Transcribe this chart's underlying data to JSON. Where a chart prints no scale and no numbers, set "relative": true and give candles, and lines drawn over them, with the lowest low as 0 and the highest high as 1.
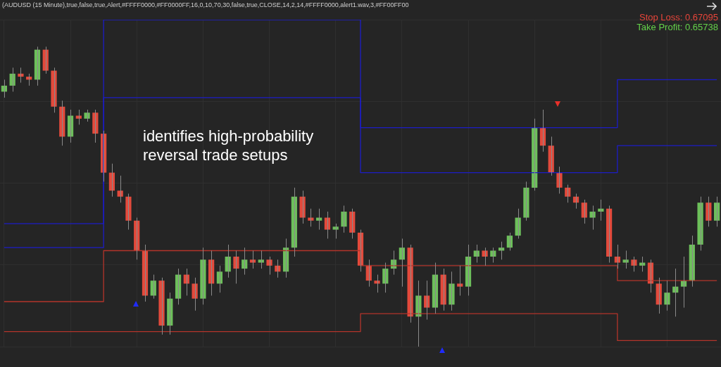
{
  "chart_data": {
    "type": "candlestick",
    "title": "(AUDUSD (15 Minute),true,false,true,Alert,#FFFF0000,#FF0000FF,16,0,10,70,30,false,true,CLOSE,14,2,14,#FFFF0000,alert1.wav,3,#FF00FF00",
    "annotations": [
      "identifies high-probability reversal trade setups",
      "Stop Loss: 0.67095",
      "Take Profit: 0.65738"
    ],
    "relative": true,
    "grid": true,
    "tick_labels": false,
    "categories": [
      null,
      null,
      null,
      null,
      null,
      null,
      null,
      null,
      null,
      null,
      null,
      null,
      null,
      null,
      null,
      null,
      null,
      null,
      null,
      null,
      null,
      null,
      null,
      null,
      null,
      null,
      null,
      null,
      null,
      null,
      null,
      null,
      null,
      null,
      null,
      null,
      null,
      null,
      null,
      null,
      null,
      null,
      null,
      null,
      null,
      null,
      null,
      null,
      null,
      null,
      null,
      null,
      null,
      null,
      null,
      null,
      null,
      null,
      null,
      null,
      null,
      null,
      null,
      null,
      null,
      null,
      null,
      null,
      null,
      null,
      null,
      null,
      null,
      null,
      null,
      null,
      null,
      null,
      null,
      null,
      null,
      null,
      null,
      null,
      null,
      null,
      null
    ],
    "ohlc": [
      [
        0.85,
        0.89,
        0.83,
        0.87
      ],
      [
        0.87,
        0.93,
        0.85,
        0.91
      ],
      [
        0.91,
        0.93,
        0.88,
        0.9
      ],
      [
        0.9,
        0.91,
        0.87,
        0.89
      ],
      [
        0.89,
        1.0,
        0.87,
        0.99
      ],
      [
        0.99,
        1.0,
        0.91,
        0.92
      ],
      [
        0.92,
        0.93,
        0.78,
        0.8
      ],
      [
        0.8,
        0.82,
        0.67,
        0.7
      ],
      [
        0.7,
        0.79,
        0.68,
        0.77
      ],
      [
        0.77,
        0.79,
        0.74,
        0.76
      ],
      [
        0.76,
        0.79,
        0.75,
        0.78
      ],
      [
        0.78,
        0.79,
        0.68,
        0.71
      ],
      [
        0.71,
        0.72,
        0.55,
        0.58
      ],
      [
        0.58,
        0.61,
        0.5,
        0.52
      ],
      [
        0.52,
        0.57,
        0.48,
        0.5
      ],
      [
        0.5,
        0.51,
        0.39,
        0.42
      ],
      [
        0.42,
        0.43,
        0.29,
        0.32
      ],
      [
        0.32,
        0.34,
        0.15,
        0.17
      ],
      [
        0.17,
        0.24,
        0.16,
        0.22
      ],
      [
        0.22,
        0.23,
        0.04,
        0.07
      ],
      [
        0.07,
        0.18,
        0.04,
        0.16
      ],
      [
        0.16,
        0.26,
        0.14,
        0.24
      ],
      [
        0.24,
        0.26,
        0.17,
        0.21
      ],
      [
        0.21,
        0.23,
        0.12,
        0.16
      ],
      [
        0.16,
        0.33,
        0.14,
        0.29
      ],
      [
        0.29,
        0.32,
        0.17,
        0.21
      ],
      [
        0.21,
        0.27,
        0.18,
        0.25
      ],
      [
        0.25,
        0.34,
        0.23,
        0.3
      ],
      [
        0.3,
        0.32,
        0.21,
        0.26
      ],
      [
        0.26,
        0.33,
        0.24,
        0.29
      ],
      [
        0.29,
        0.32,
        0.26,
        0.28
      ],
      [
        0.28,
        0.32,
        0.26,
        0.29
      ],
      [
        0.29,
        0.3,
        0.24,
        0.27
      ],
      [
        0.27,
        0.29,
        0.23,
        0.25
      ],
      [
        0.25,
        0.36,
        0.23,
        0.33
      ],
      [
        0.33,
        0.53,
        0.3,
        0.5
      ],
      [
        0.5,
        0.52,
        0.41,
        0.43
      ],
      [
        0.43,
        0.46,
        0.4,
        0.42
      ],
      [
        0.42,
        0.46,
        0.39,
        0.43
      ],
      [
        0.43,
        0.45,
        0.36,
        0.39
      ],
      [
        0.39,
        0.41,
        0.36,
        0.4
      ],
      [
        0.4,
        0.47,
        0.38,
        0.45
      ],
      [
        0.45,
        0.46,
        0.36,
        0.38
      ],
      [
        0.38,
        0.39,
        0.25,
        0.27
      ],
      [
        0.27,
        0.29,
        0.2,
        0.22
      ],
      [
        0.22,
        0.24,
        0.18,
        0.21
      ],
      [
        0.21,
        0.28,
        0.18,
        0.26
      ],
      [
        0.26,
        0.32,
        0.24,
        0.29
      ],
      [
        0.29,
        0.36,
        0.2,
        0.33
      ],
      [
        0.33,
        0.34,
        0.08,
        0.1
      ],
      [
        0.1,
        0.22,
        0,
        0.17
      ],
      [
        0.17,
        0.22,
        0.09,
        0.13
      ],
      [
        0.13,
        0.28,
        0.11,
        0.24
      ],
      [
        0.24,
        0.26,
        0.12,
        0.14
      ],
      [
        0.14,
        0.25,
        0.12,
        0.21
      ],
      [
        0.21,
        0.27,
        0.17,
        0.2
      ],
      [
        0.2,
        0.34,
        0.17,
        0.3
      ],
      [
        0.3,
        0.34,
        0.28,
        0.32
      ],
      [
        0.32,
        0.33,
        0.27,
        0.3
      ],
      [
        0.3,
        0.33,
        0.28,
        0.32
      ],
      [
        0.32,
        0.35,
        0.29,
        0.33
      ],
      [
        0.33,
        0.38,
        0.32,
        0.37
      ],
      [
        0.37,
        0.46,
        0.36,
        0.43
      ],
      [
        0.43,
        0.55,
        0.42,
        0.53
      ],
      [
        0.53,
        0.76,
        0.52,
        0.73
      ],
      [
        0.73,
        0.79,
        0.65,
        0.67
      ],
      [
        0.67,
        0.7,
        0.57,
        0.58
      ],
      [
        0.58,
        0.6,
        0.51,
        0.53
      ],
      [
        0.53,
        0.54,
        0.48,
        0.5
      ],
      [
        0.5,
        0.51,
        0.46,
        0.48
      ],
      [
        0.48,
        0.49,
        0.41,
        0.43
      ],
      [
        0.43,
        0.47,
        0.39,
        0.45
      ],
      [
        0.45,
        0.49,
        0.42,
        0.46
      ],
      [
        0.46,
        0.47,
        0.28,
        0.3
      ],
      [
        0.3,
        0.34,
        0.26,
        0.28
      ],
      [
        0.28,
        0.32,
        0.26,
        0.29
      ],
      [
        0.29,
        0.3,
        0.25,
        0.27
      ],
      [
        0.27,
        0.3,
        0.25,
        0.28
      ],
      [
        0.28,
        0.29,
        0.18,
        0.21
      ],
      [
        0.21,
        0.23,
        0.11,
        0.14
      ],
      [
        0.14,
        0.22,
        0.12,
        0.18
      ],
      [
        0.18,
        0.26,
        0.1,
        0.2
      ],
      [
        0.2,
        0.3,
        0.13,
        0.22
      ],
      [
        0.22,
        0.37,
        0.2,
        0.34
      ],
      [
        0.34,
        0.5,
        0.32,
        0.48
      ],
      [
        0.48,
        0.5,
        0.4,
        0.42
      ],
      [
        0.42,
        0.5,
        0.4,
        0.48
      ]
    ],
    "colors": [
      "#6dbf5b",
      "#6dbf5b",
      "#e34a3c",
      "#e34a3c",
      "#6dbf5b",
      "#e34a3c",
      "#e34a3c",
      "#e34a3c",
      "#6dbf5b",
      "#e34a3c",
      "#6dbf5b",
      "#e34a3c",
      "#e34a3c",
      "#e34a3c",
      "#e34a3c",
      "#e34a3c",
      "#e34a3c",
      "#e34a3c",
      "#6dbf5b",
      "#e34a3c",
      "#6dbf5b",
      "#6dbf5b",
      "#e34a3c",
      "#e34a3c",
      "#6dbf5b",
      "#e34a3c",
      "#6dbf5b",
      "#6dbf5b",
      "#e34a3c",
      "#6dbf5b",
      "#e34a3c",
      "#6dbf5b",
      "#e34a3c",
      "#e34a3c",
      "#6dbf5b",
      "#6dbf5b",
      "#e34a3c",
      "#e34a3c",
      "#6dbf5b",
      "#e34a3c",
      "#6dbf5b",
      "#6dbf5b",
      "#e34a3c",
      "#e34a3c",
      "#e34a3c",
      "#e34a3c",
      "#6dbf5b",
      "#6dbf5b",
      "#6dbf5b",
      "#e34a3c",
      "#6dbf5b",
      "#e34a3c",
      "#6dbf5b",
      "#e34a3c",
      "#6dbf5b",
      "#e34a3c",
      "#6dbf5b",
      "#6dbf5b",
      "#e34a3c",
      "#6dbf5b",
      "#6dbf5b",
      "#6dbf5b",
      "#6dbf5b",
      "#6dbf5b",
      "#6dbf5b",
      "#e34a3c",
      "#e34a3c",
      "#e34a3c",
      "#e34a3c",
      "#e34a3c",
      "#e34a3c",
      "#6dbf5b",
      "#6dbf5b",
      "#e34a3c",
      "#e34a3c",
      "#6dbf5b",
      "#e34a3c",
      "#6dbf5b",
      "#e34a3c",
      "#e34a3c",
      "#6dbf5b",
      "#6dbf5b",
      "#6dbf5b",
      "#6dbf5b",
      "#6dbf5b",
      "#e34a3c",
      "#6dbf5b"
    ],
    "series": [
      {
        "type": "step",
        "color": "#1c1cc8",
        "values": [
          0.41,
          0.41,
          0.41,
          0.41,
          0.41,
          0.41,
          0.41,
          0.41,
          0.41,
          0.41,
          0.41,
          0.41,
          1.09,
          1.09,
          1.09,
          1.09,
          1.09,
          1.09,
          1.09,
          1.09,
          1.09,
          1.09,
          1.09,
          1.09,
          1.09,
          1.09,
          1.09,
          1.09,
          1.09,
          1.09,
          1.09,
          1.09,
          1.09,
          1.09,
          1.09,
          1.09,
          1.09,
          1.09,
          1.09,
          1.09,
          1.09,
          1.09,
          1.09,
          0.73,
          0.73,
          0.73,
          0.73,
          0.73,
          0.73,
          0.73,
          0.73,
          0.73,
          0.73,
          0.73,
          0.73,
          0.73,
          0.73,
          0.73,
          0.73,
          0.73,
          0.73,
          0.73,
          0.73,
          0.73,
          0.73,
          0.73,
          0.73,
          0.73,
          0.73,
          0.73,
          0.73,
          0.73,
          0.73,
          0.73,
          0.89,
          0.89,
          0.89,
          0.89,
          0.89,
          0.89,
          0.89,
          0.89,
          0.89,
          0.89,
          0.89,
          0.89,
          0.89
        ]
      },
      {
        "type": "step",
        "color": "#1c1cc8",
        "values": [
          0.33,
          0.33,
          0.33,
          0.33,
          0.33,
          0.33,
          0.33,
          0.33,
          0.33,
          0.33,
          0.33,
          0.33,
          0.83,
          0.83,
          0.83,
          0.83,
          0.83,
          0.83,
          0.83,
          0.83,
          0.83,
          0.83,
          0.83,
          0.83,
          0.83,
          0.83,
          0.83,
          0.83,
          0.83,
          0.83,
          0.83,
          0.83,
          0.83,
          0.83,
          0.83,
          0.83,
          0.83,
          0.83,
          0.83,
          0.83,
          0.83,
          0.83,
          0.83,
          0.58,
          0.58,
          0.58,
          0.58,
          0.58,
          0.58,
          0.58,
          0.58,
          0.58,
          0.58,
          0.58,
          0.58,
          0.58,
          0.58,
          0.58,
          0.58,
          0.58,
          0.58,
          0.58,
          0.58,
          0.58,
          0.58,
          0.58,
          0.58,
          0.58,
          0.58,
          0.58,
          0.58,
          0.58,
          0.58,
          0.58,
          0.67,
          0.67,
          0.67,
          0.67,
          0.67,
          0.67,
          0.67,
          0.67,
          0.67,
          0.67,
          0.67,
          0.67,
          0.67
        ]
      },
      {
        "type": "step",
        "color": "#b3342b",
        "values": [
          0.15,
          0.15,
          0.15,
          0.15,
          0.15,
          0.15,
          0.15,
          0.15,
          0.15,
          0.15,
          0.15,
          0.15,
          0.32,
          0.32,
          0.32,
          0.32,
          0.32,
          0.32,
          0.32,
          0.32,
          0.32,
          0.32,
          0.32,
          0.32,
          0.32,
          0.32,
          0.32,
          0.32,
          0.32,
          0.32,
          0.32,
          0.32,
          0.32,
          0.32,
          0.32,
          0.32,
          0.32,
          0.32,
          0.32,
          0.32,
          0.32,
          0.32,
          0.32,
          0.27,
          0.27,
          0.27,
          0.27,
          0.27,
          0.27,
          0.27,
          0.27,
          0.27,
          0.27,
          0.27,
          0.27,
          0.27,
          0.27,
          0.27,
          0.27,
          0.27,
          0.27,
          0.27,
          0.27,
          0.27,
          0.27,
          0.27,
          0.27,
          0.27,
          0.27,
          0.27,
          0.27,
          0.27,
          0.27,
          0.27,
          0.22,
          0.22,
          0.22,
          0.22,
          0.22,
          0.22,
          0.22,
          0.22,
          0.22,
          0.22,
          0.22,
          0.22,
          0.22
        ]
      },
      {
        "type": "step",
        "color": "#b3342b",
        "values": [
          0.05,
          0.05,
          0.05,
          0.05,
          0.05,
          0.05,
          0.05,
          0.05,
          0.05,
          0.05,
          0.05,
          0.05,
          0.05,
          0.05,
          0.05,
          0.05,
          0.05,
          0.05,
          0.05,
          0.05,
          0.05,
          0.05,
          0.05,
          0.05,
          0.05,
          0.05,
          0.05,
          0.05,
          0.05,
          0.05,
          0.05,
          0.05,
          0.05,
          0.05,
          0.05,
          0.05,
          0.05,
          0.05,
          0.05,
          0.05,
          0.05,
          0.05,
          0.05,
          0.11,
          0.11,
          0.11,
          0.11,
          0.11,
          0.11,
          0.11,
          0.11,
          0.11,
          0.11,
          0.11,
          0.11,
          0.11,
          0.11,
          0.11,
          0.11,
          0.11,
          0.11,
          0.11,
          0.11,
          0.11,
          0.11,
          0.11,
          0.11,
          0.11,
          0.11,
          0.11,
          0.11,
          0.11,
          0.11,
          0.11,
          0.02,
          0.02,
          0.02,
          0.02,
          0.02,
          0.02,
          0.02,
          0.02,
          0.02,
          0.02,
          0.02,
          0.02,
          0.02
        ]
      }
    ]
  }
}
